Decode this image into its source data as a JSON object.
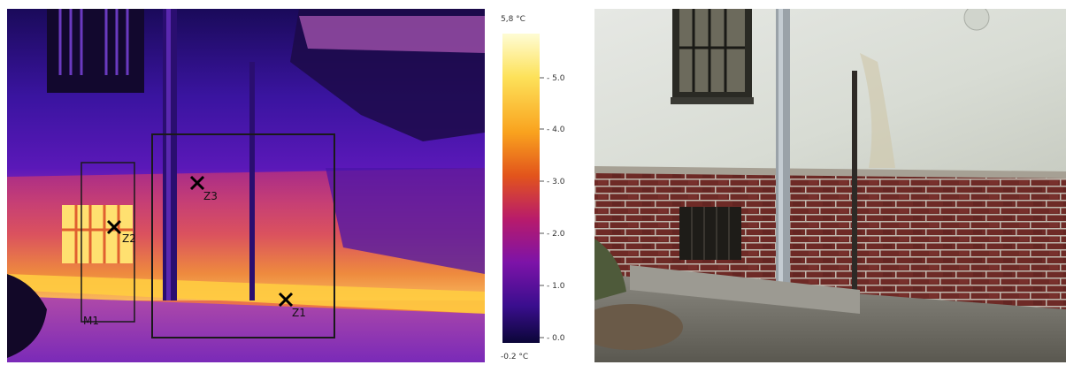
{
  "thermal": {
    "spots": [
      {
        "label": "Z3"
      },
      {
        "label": "Z2"
      },
      {
        "label": "Z1"
      }
    ],
    "region_label": "M1"
  },
  "scale": {
    "max_label": "5,8 °C",
    "min_label": "-0.2 °C",
    "ticks": [
      "5.0",
      "4.0",
      "3.0",
      "2.0",
      "1.0",
      "0.0"
    ],
    "colors": [
      "#fefcd4",
      "#fde25a",
      "#f9a21e",
      "#e2541c",
      "#b81b6b",
      "#7d13a8",
      "#3a0e8e",
      "#0b0638"
    ]
  }
}
